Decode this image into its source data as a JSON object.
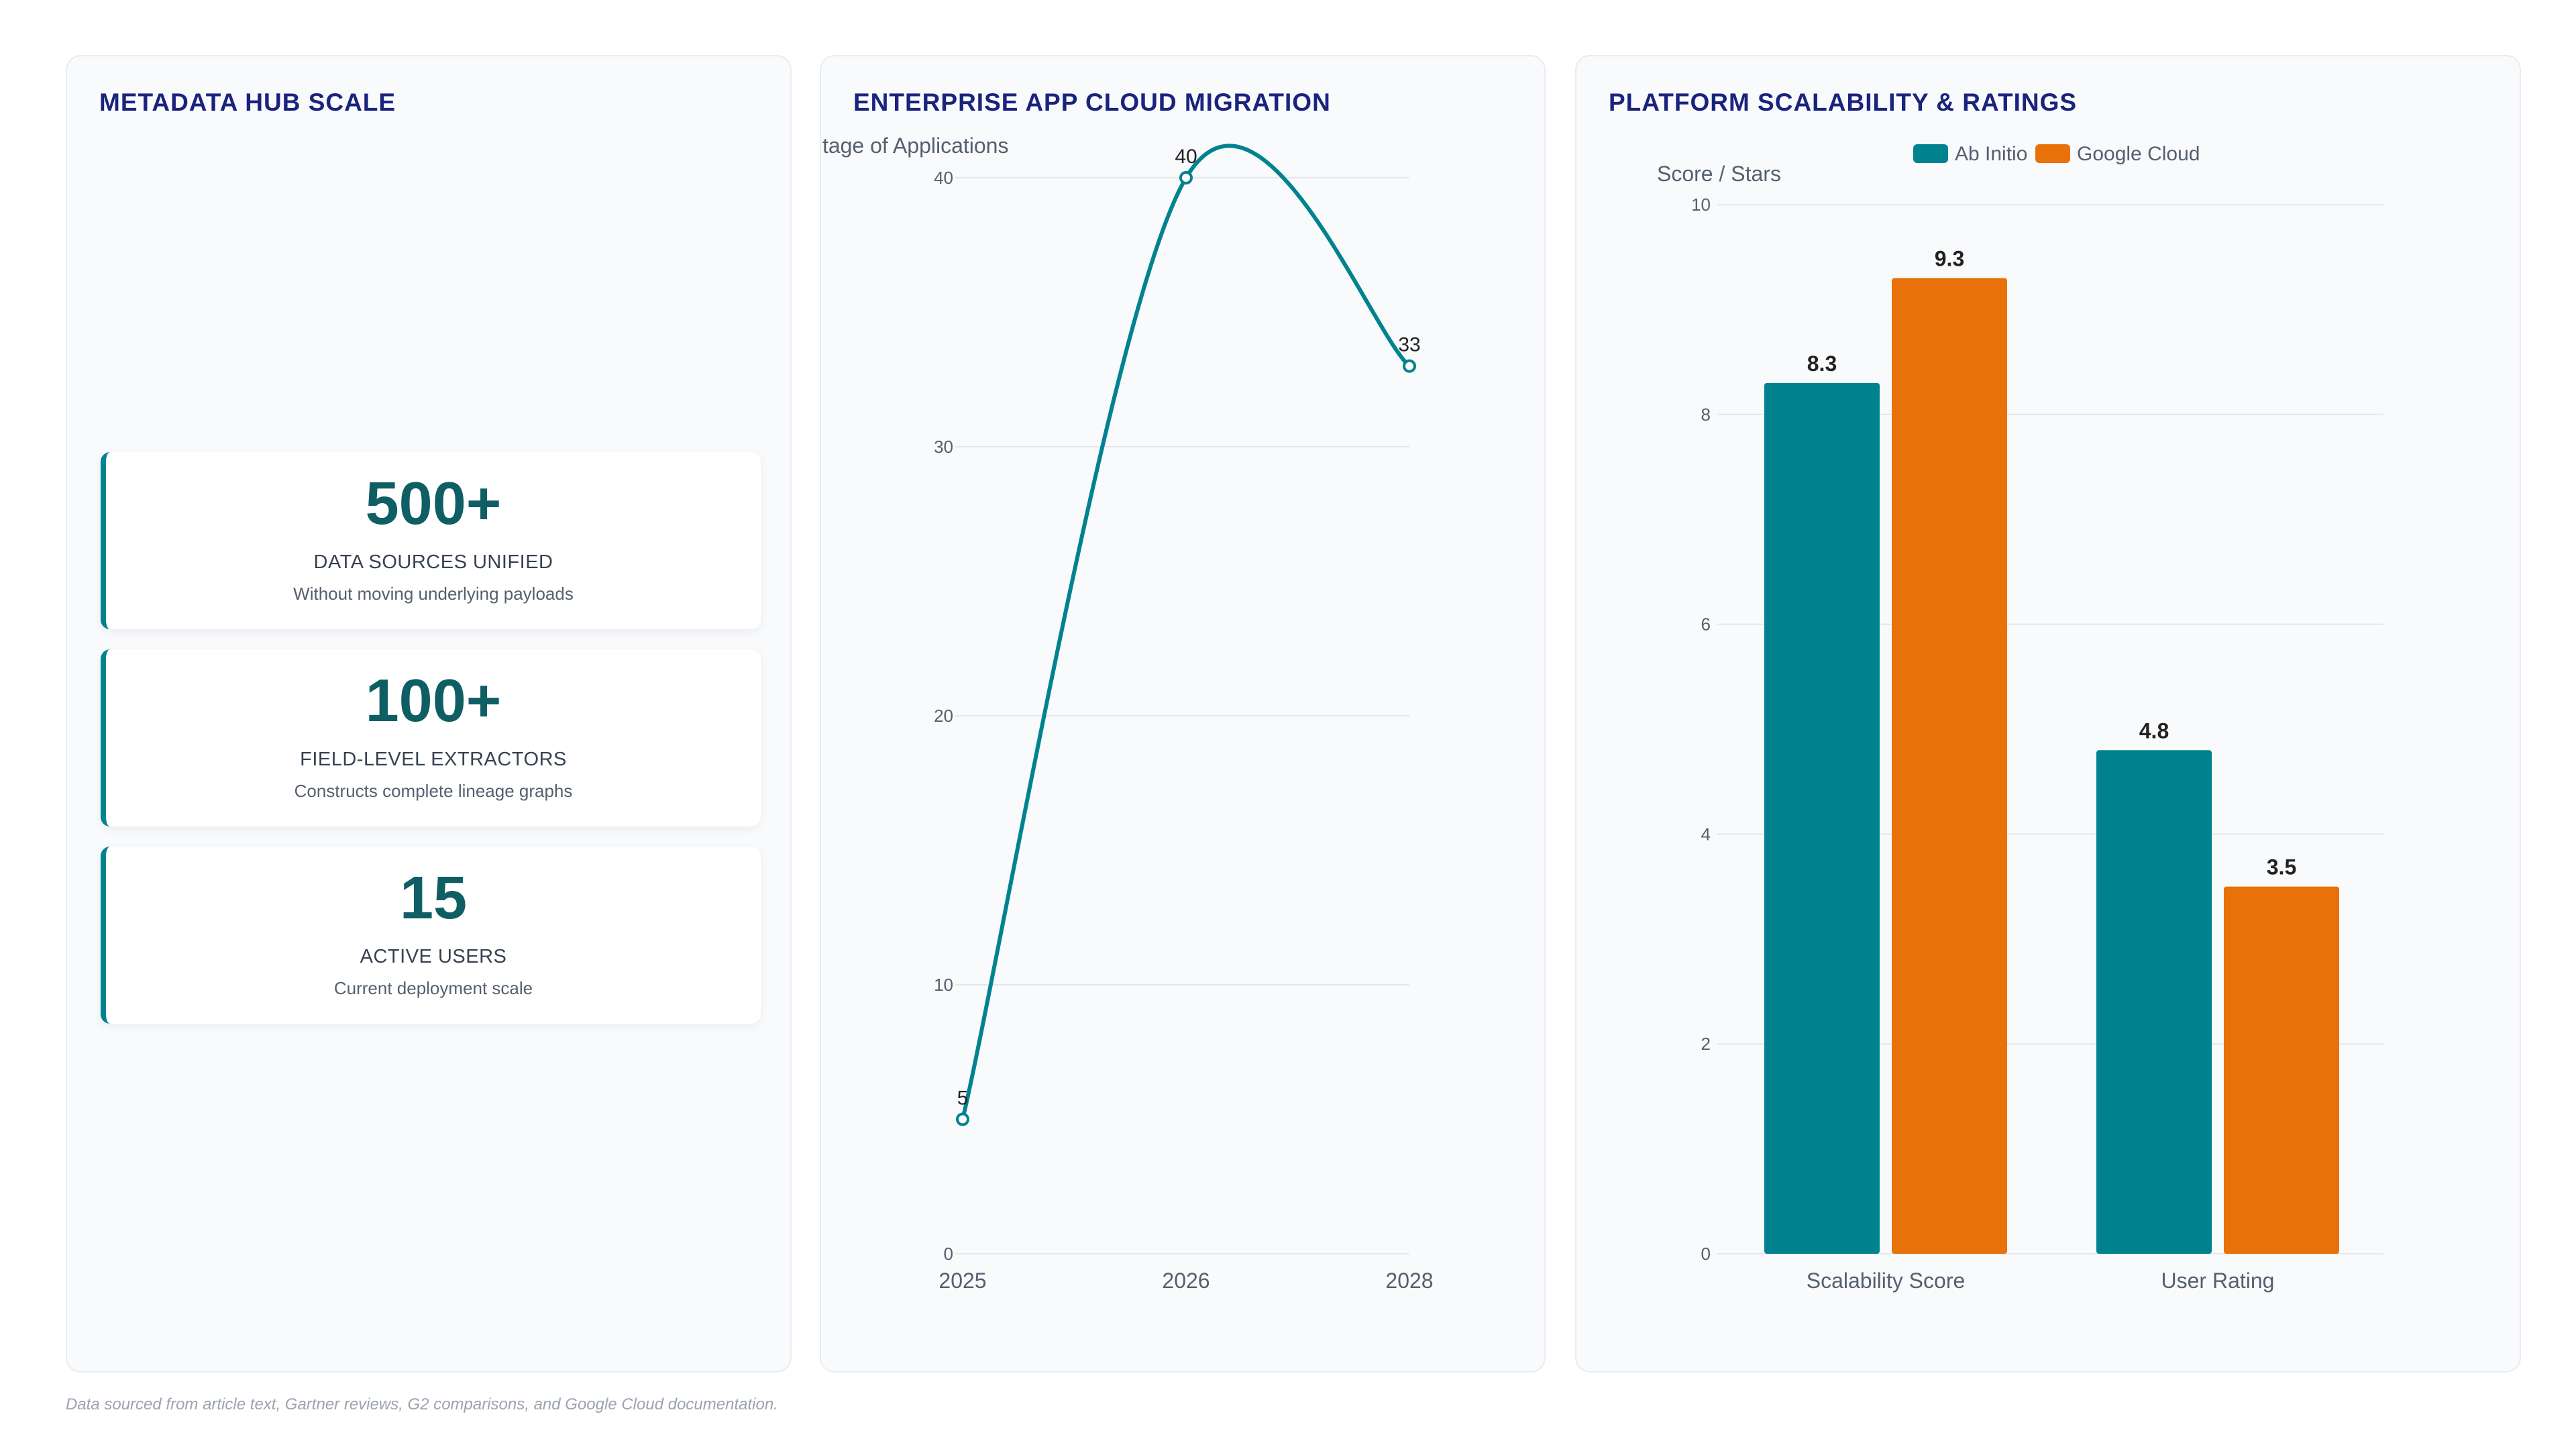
{
  "colors": {
    "teal": "#00838f",
    "orange": "#e8710a",
    "title": "#1a237e",
    "stat_value": "#0e5e63"
  },
  "left_panel": {
    "title": "METADATA HUB SCALE",
    "stats": [
      {
        "value": "500+",
        "label": "DATA SOURCES UNIFIED",
        "desc": "Without moving underlying payloads"
      },
      {
        "value": "100+",
        "label": "FIELD-LEVEL EXTRACTORS",
        "desc": "Constructs complete lineage graphs"
      },
      {
        "value": "15",
        "label": "ACTIVE USERS",
        "desc": "Current deployment scale"
      }
    ]
  },
  "chart_data": [
    {
      "type": "line",
      "title": "ENTERPRISE APP CLOUD MIGRATION",
      "ylabel": "Percentage of Applications",
      "xlabel": "",
      "x": [
        "2025",
        "2026",
        "2028"
      ],
      "series": [
        {
          "values": [
            5,
            40,
            33
          ]
        }
      ],
      "ylim": [
        0,
        40
      ],
      "yticks": [
        0,
        10,
        20,
        30,
        40
      ],
      "grid": true,
      "smooth": true,
      "data_labels": [
        "5",
        "40",
        "33"
      ]
    },
    {
      "type": "bar",
      "title": "PLATFORM SCALABILITY & RATINGS",
      "ylabel": "Score / Stars",
      "xlabel": "",
      "categories": [
        "Scalability Score",
        "User Rating"
      ],
      "series": [
        {
          "name": "Ab Initio",
          "values": [
            8.3,
            4.8
          ],
          "labels": [
            "8.3",
            "4.8"
          ]
        },
        {
          "name": "Google Cloud",
          "values": [
            9.3,
            3.5
          ],
          "labels": [
            "9.3",
            "3.5"
          ]
        }
      ],
      "ylim": [
        0,
        10
      ],
      "yticks": [
        0,
        2,
        4,
        6,
        8,
        10
      ],
      "legend": "top-center",
      "grid": true
    }
  ],
  "footer": {
    "note": "Data sourced from article text, Gartner reviews, G2 comparisons, and Google Cloud documentation."
  }
}
